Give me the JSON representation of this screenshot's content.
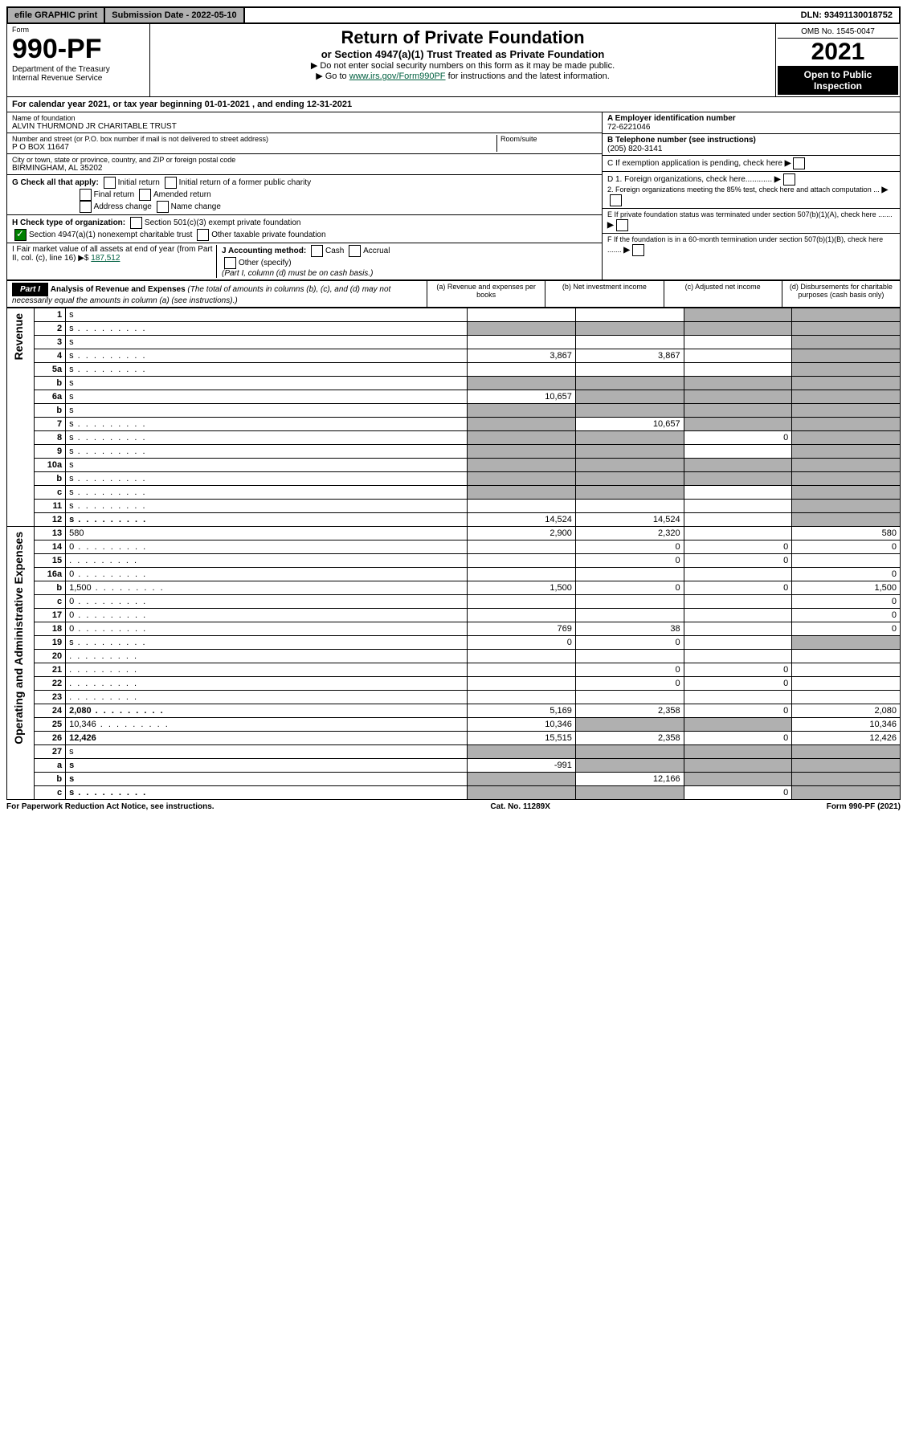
{
  "top": {
    "efile": "efile GRAPHIC print",
    "sub_date_label": "Submission Date - 2022-05-10",
    "dln": "DLN: 93491130018752"
  },
  "header": {
    "form_label": "Form",
    "form_no": "990-PF",
    "dept": "Department of the Treasury",
    "irs": "Internal Revenue Service",
    "title": "Return of Private Foundation",
    "subtitle": "or Section 4947(a)(1) Trust Treated as Private Foundation",
    "note1": "▶ Do not enter social security numbers on this form as it may be made public.",
    "note2_pre": "▶ Go to ",
    "note2_link": "www.irs.gov/Form990PF",
    "note2_post": " for instructions and the latest information.",
    "omb": "OMB No. 1545-0047",
    "year": "2021",
    "open": "Open to Public Inspection"
  },
  "cal_year": "For calendar year 2021, or tax year beginning 01-01-2021            , and ending 12-31-2021",
  "name_block": {
    "label": "Name of foundation",
    "value": "ALVIN THURMOND JR CHARITABLE TRUST",
    "addr_label": "Number and street (or P.O. box number if mail is not delivered to street address)",
    "addr": "P O BOX 11647",
    "room_label": "Room/suite",
    "city_label": "City or town, state or province, country, and ZIP or foreign postal code",
    "city": "BIRMINGHAM, AL  35202"
  },
  "right_block": {
    "a_label": "A Employer identification number",
    "a_val": "72-6221046",
    "b_label": "B Telephone number (see instructions)",
    "b_val": "(205) 820-3141",
    "c_label": "C If exemption application is pending, check here",
    "d1": "D 1. Foreign organizations, check here............",
    "d2": "2. Foreign organizations meeting the 85% test, check here and attach computation ...",
    "e": "E  If private foundation status was terminated under section 507(b)(1)(A), check here .......",
    "f": "F  If the foundation is in a 60-month termination under section 507(b)(1)(B), check here .......",
    "g_label": "G Check all that apply:",
    "g_opts": [
      "Initial return",
      "Initial return of a former public charity",
      "Final return",
      "Amended return",
      "Address change",
      "Name change"
    ],
    "h_label": "H Check type of organization:",
    "h1": "Section 501(c)(3) exempt private foundation",
    "h2": "Section 4947(a)(1) nonexempt charitable trust",
    "h3": "Other taxable private foundation",
    "i_label": "I Fair market value of all assets at end of year (from Part II, col. (c), line 16) ▶$ ",
    "i_val": "187,512",
    "j_label": "J Accounting method:",
    "j_cash": "Cash",
    "j_accrual": "Accrual",
    "j_other": "Other (specify)",
    "j_note": "(Part I, column (d) must be on cash basis.)"
  },
  "part1": {
    "label": "Part I",
    "title": "Analysis of Revenue and Expenses",
    "title_note": " (The total of amounts in columns (b), (c), and (d) may not necessarily equal the amounts in column (a) (see instructions).)",
    "cols": {
      "a": "(a)  Revenue and expenses per books",
      "b": "(b)  Net investment income",
      "c": "(c)  Adjusted net income",
      "d": "(d)  Disbursements for charitable purposes (cash basis only)"
    }
  },
  "sides": {
    "revenue": "Revenue",
    "opex": "Operating and Administrative Expenses"
  },
  "rows": [
    {
      "n": "1",
      "d": "s",
      "a": "",
      "b": "",
      "c": "s"
    },
    {
      "n": "2",
      "d": "s",
      "a": "s",
      "b": "s",
      "c": "s",
      "dots": true
    },
    {
      "n": "3",
      "d": "s",
      "a": "",
      "b": "",
      "c": ""
    },
    {
      "n": "4",
      "d": "s",
      "a": "3,867",
      "b": "3,867",
      "c": "",
      "dots": true
    },
    {
      "n": "5a",
      "d": "s",
      "a": "",
      "b": "",
      "c": "",
      "dots": true
    },
    {
      "n": "b",
      "d": "s",
      "a": "s",
      "b": "s",
      "c": "s"
    },
    {
      "n": "6a",
      "d": "s",
      "a": "10,657",
      "b": "s",
      "c": "s"
    },
    {
      "n": "b",
      "d": "s",
      "a": "s",
      "b": "s",
      "c": "s"
    },
    {
      "n": "7",
      "d": "s",
      "a": "s",
      "b": "10,657",
      "c": "s",
      "dots": true
    },
    {
      "n": "8",
      "d": "s",
      "a": "s",
      "b": "s",
      "c": "0",
      "dots": true
    },
    {
      "n": "9",
      "d": "s",
      "a": "s",
      "b": "s",
      "c": "",
      "dots": true
    },
    {
      "n": "10a",
      "d": "s",
      "a": "s",
      "b": "s",
      "c": "s"
    },
    {
      "n": "b",
      "d": "s",
      "a": "s",
      "b": "s",
      "c": "s",
      "dots": true
    },
    {
      "n": "c",
      "d": "s",
      "a": "s",
      "b": "s",
      "c": "",
      "dots": true
    },
    {
      "n": "11",
      "d": "s",
      "a": "",
      "b": "",
      "c": "",
      "dots": true
    },
    {
      "n": "12",
      "d": "s",
      "a": "14,524",
      "b": "14,524",
      "c": "",
      "bold": true,
      "dots": true
    },
    {
      "n": "13",
      "d": "580",
      "a": "2,900",
      "b": "2,320",
      "c": ""
    },
    {
      "n": "14",
      "d": "0",
      "a": "",
      "b": "0",
      "c": "0",
      "dots": true
    },
    {
      "n": "15",
      "d": "",
      "a": "",
      "b": "0",
      "c": "0",
      "dots": true
    },
    {
      "n": "16a",
      "d": "0",
      "a": "",
      "b": "",
      "c": "",
      "dots": true
    },
    {
      "n": "b",
      "d": "1,500",
      "a": "1,500",
      "b": "0",
      "c": "0",
      "dots": true
    },
    {
      "n": "c",
      "d": "0",
      "a": "",
      "b": "",
      "c": "",
      "dots": true
    },
    {
      "n": "17",
      "d": "0",
      "a": "",
      "b": "",
      "c": "",
      "dots": true
    },
    {
      "n": "18",
      "d": "0",
      "a": "769",
      "b": "38",
      "c": "",
      "dots": true
    },
    {
      "n": "19",
      "d": "s",
      "a": "0",
      "b": "0",
      "c": "",
      "dots": true
    },
    {
      "n": "20",
      "d": "",
      "a": "",
      "b": "",
      "c": "",
      "dots": true
    },
    {
      "n": "21",
      "d": "",
      "a": "",
      "b": "0",
      "c": "0",
      "dots": true
    },
    {
      "n": "22",
      "d": "",
      "a": "",
      "b": "0",
      "c": "0",
      "dots": true
    },
    {
      "n": "23",
      "d": "",
      "a": "",
      "b": "",
      "c": "",
      "dots": true
    },
    {
      "n": "24",
      "d": "2,080",
      "a": "5,169",
      "b": "2,358",
      "c": "0",
      "bold": true,
      "dots": true
    },
    {
      "n": "25",
      "d": "10,346",
      "a": "10,346",
      "b": "s",
      "c": "s",
      "dots": true
    },
    {
      "n": "26",
      "d": "12,426",
      "a": "15,515",
      "b": "2,358",
      "c": "0",
      "bold": true
    },
    {
      "n": "27",
      "d": "s",
      "a": "s",
      "b": "s",
      "c": "s"
    },
    {
      "n": "a",
      "d": "s",
      "a": "-991",
      "b": "s",
      "c": "s",
      "bold": true
    },
    {
      "n": "b",
      "d": "s",
      "a": "s",
      "b": "12,166",
      "c": "s",
      "bold": true
    },
    {
      "n": "c",
      "d": "s",
      "a": "s",
      "b": "s",
      "c": "0",
      "bold": true,
      "dots": true
    }
  ],
  "footer": {
    "left": "For Paperwork Reduction Act Notice, see instructions.",
    "mid": "Cat. No. 11289X",
    "right": "Form 990-PF (2021)"
  }
}
